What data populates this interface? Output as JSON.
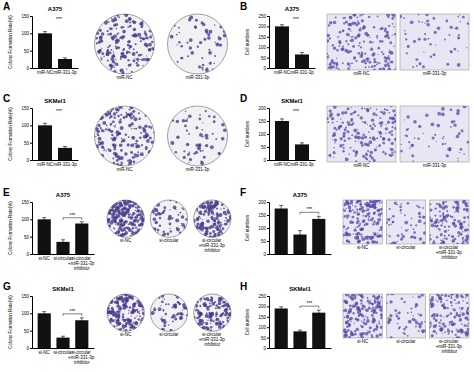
{
  "chart_data": [
    {
      "type": "bar",
      "panel": "A",
      "title": "A375",
      "y_label": "Colony Formation Rate(%)",
      "categories": [
        "miR-NC",
        "miR-331-3p"
      ],
      "values": [
        100,
        26
      ],
      "errors": [
        5,
        3
      ],
      "color": "#111111",
      "ylim": [
        0,
        150
      ],
      "yticks": [
        0,
        50,
        100,
        150
      ],
      "annotations": [
        "***"
      ],
      "image_labels": [
        "miR-NC",
        "miR-331-3p"
      ]
    },
    {
      "type": "bar",
      "panel": "B",
      "title": "A375",
      "y_label": "Cell numbers",
      "categories": [
        "miR-NC",
        "miR-331-3p"
      ],
      "values": [
        200,
        65
      ],
      "errors": [
        8,
        10
      ],
      "color": "#111111",
      "ylim": [
        0,
        250
      ],
      "yticks": [
        0,
        50,
        100,
        150,
        200,
        250
      ],
      "annotations": [
        "***"
      ],
      "image_labels": [
        "miR-NC",
        "miR-331-3p"
      ]
    },
    {
      "type": "bar",
      "panel": "C",
      "title": "SKMel1",
      "y_label": "Colony Formation Rate(%)",
      "categories": [
        "miR-NC",
        "miR-331-3p"
      ],
      "values": [
        100,
        35
      ],
      "errors": [
        6,
        4
      ],
      "color": "#111111",
      "ylim": [
        0,
        150
      ],
      "yticks": [
        0,
        50,
        100,
        150
      ],
      "annotations": [
        "***"
      ],
      "image_labels": [
        "miR-NC",
        "miR-331-3p"
      ]
    },
    {
      "type": "bar",
      "panel": "D",
      "title": "SKMel1",
      "y_label": "Cell numbers",
      "categories": [
        "miR-NC",
        "miR-331-3p"
      ],
      "values": [
        150,
        60
      ],
      "errors": [
        8,
        6
      ],
      "color": "#111111",
      "ylim": [
        0,
        200
      ],
      "yticks": [
        0,
        50,
        100,
        150,
        200
      ],
      "annotations": [
        "***"
      ],
      "image_labels": [
        "miR-NC",
        "miR-331-3p"
      ]
    },
    {
      "type": "bar",
      "panel": "E",
      "title": "A375",
      "y_label": "Colony Formation Rate(%)",
      "categories": [
        "si-NC",
        "si-circular",
        "si-circular +miR-331-3p inhibitor"
      ],
      "values": [
        100,
        35,
        88
      ],
      "errors": [
        5,
        6,
        5
      ],
      "color": "#111111",
      "ylim": [
        0,
        150
      ],
      "yticks": [
        0,
        50,
        100,
        150
      ],
      "annotations": [
        "***"
      ],
      "image_labels": [
        "si-NC",
        "si-circular",
        "si-circular +miR-331-3p inhibitor"
      ]
    },
    {
      "type": "bar",
      "panel": "F",
      "title": "A375",
      "y_label": "Cell numbers",
      "categories": [
        null,
        null,
        null
      ],
      "values": [
        175,
        75,
        135
      ],
      "errors": [
        12,
        15,
        10
      ],
      "color": "#111111",
      "ylim": [
        0,
        200
      ],
      "yticks": [
        0,
        50,
        100,
        150,
        200
      ],
      "annotations": [
        "***"
      ],
      "image_labels": [
        "si-NC",
        "si-circular",
        "si-circular +miR-331-3p inhibitor"
      ]
    },
    {
      "type": "bar",
      "panel": "G",
      "title": "SKMel1",
      "y_label": "Colony Formation Rate(%)",
      "categories": [
        "si-NC",
        "si-circular",
        "si-circular +miR-331-3p inhibitor"
      ],
      "values": [
        100,
        30,
        80
      ],
      "errors": [
        5,
        4,
        7
      ],
      "color": "#111111",
      "ylim": [
        0,
        150
      ],
      "yticks": [
        0,
        50,
        100,
        150
      ],
      "annotations": [
        "***"
      ],
      "image_labels": [
        "si-NC",
        "si-circular",
        "si-circular +miR-331-3p inhibitor"
      ]
    },
    {
      "type": "bar",
      "panel": "H",
      "title": "SKMel1",
      "y_label": "Cell numbers",
      "categories": [
        null,
        null,
        null
      ],
      "values": [
        190,
        80,
        170
      ],
      "errors": [
        8,
        6,
        12
      ],
      "color": "#111111",
      "ylim": [
        0,
        250
      ],
      "yticks": [
        0,
        50,
        100,
        150,
        200,
        250
      ],
      "annotations": [
        "***"
      ],
      "image_labels": [
        "si-NC",
        "si-circular",
        "si-circular +miR-331-3p inhibitor"
      ]
    }
  ]
}
